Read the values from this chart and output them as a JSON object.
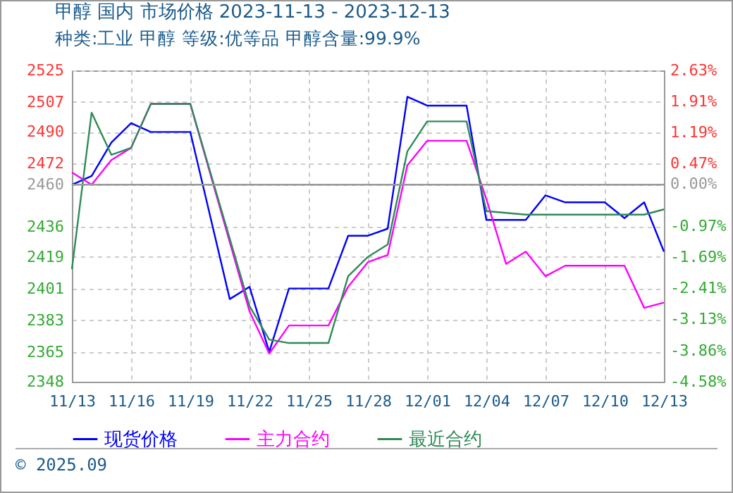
{
  "chart_data": {
    "type": "line",
    "title": "甲醇 国内 市场价格 2023-11-13 - 2023-12-13",
    "subtitle": "种类:工业 甲醇 等级:优等品 甲醇含量:99.9%",
    "annotations": [
      "© 2025.09"
    ],
    "xlim": [
      "2023-11-13",
      "2023-12-13"
    ],
    "xticks": [
      {
        "value": "2023-11-13",
        "label": "11/13"
      },
      {
        "value": "2023-11-16",
        "label": "11/16"
      },
      {
        "value": "2023-11-19",
        "label": "11/19"
      },
      {
        "value": "2023-11-22",
        "label": "11/22"
      },
      {
        "value": "2023-11-25",
        "label": "11/25"
      },
      {
        "value": "2023-11-28",
        "label": "11/28"
      },
      {
        "value": "2023-12-01",
        "label": "12/01"
      },
      {
        "value": "2023-12-04",
        "label": "12/04"
      },
      {
        "value": "2023-12-07",
        "label": "12/07"
      },
      {
        "value": "2023-12-10",
        "label": "12/10"
      },
      {
        "value": "2023-12-13",
        "label": "12/13"
      }
    ],
    "ylim": [
      2348,
      2525
    ],
    "yticks": [
      2348,
      2365,
      2383,
      2401,
      2419,
      2436,
      2460,
      2472,
      2490,
      2507,
      2525
    ],
    "y2lim": [
      -4.58,
      2.63
    ],
    "y2ticks": [
      {
        "value": -4.58,
        "label": "-4.58%"
      },
      {
        "value": -3.86,
        "label": "-3.86%"
      },
      {
        "value": -3.13,
        "label": "-3.13%"
      },
      {
        "value": -2.41,
        "label": "-2.41%"
      },
      {
        "value": -1.69,
        "label": "-1.69%"
      },
      {
        "value": -0.97,
        "label": "-0.97%"
      },
      {
        "value": 0,
        "label": "0.00%"
      },
      {
        "value": 0.47,
        "label": "0.47%"
      },
      {
        "value": 1.19,
        "label": "1.19%"
      },
      {
        "value": 1.91,
        "label": "1.91%"
      },
      {
        "value": 2.63,
        "label": "2.63%"
      }
    ],
    "ref_lines": [
      {
        "axis": "y",
        "value": 2460,
        "color": "#999999"
      }
    ],
    "grid": true,
    "legend": "bottom",
    "line_style": "solid",
    "series": [
      {
        "name": "现货价格",
        "color": "#0000ff",
        "x": [
          "2023-11-13",
          "2023-11-14",
          "2023-11-15",
          "2023-11-16",
          "2023-11-17",
          "2023-11-19",
          "2023-11-21",
          "2023-11-22",
          "2023-11-23",
          "2023-11-24",
          "2023-11-26",
          "2023-11-27",
          "2023-11-28",
          "2023-11-29",
          "2023-11-30",
          "2023-12-01",
          "2023-12-03",
          "2023-12-04",
          "2023-12-06",
          "2023-12-07",
          "2023-12-08",
          "2023-12-10",
          "2023-12-11",
          "2023-12-12",
          "2023-12-13"
        ],
        "values": [
          2460,
          2465,
          2484,
          2495,
          2490,
          2490,
          2395,
          2402,
          2365,
          2401,
          2401,
          2431,
          2431,
          2435,
          2510,
          2505,
          2505,
          2440,
          2440,
          2454,
          2450,
          2450,
          2441,
          2450,
          2422
        ]
      },
      {
        "name": "主力合约",
        "color": "#ff00ff",
        "x": [
          "2023-11-13",
          "2023-11-14",
          "2023-11-15",
          "2023-11-16",
          "2023-11-17",
          "2023-11-19",
          "2023-11-22",
          "2023-11-23",
          "2023-11-24",
          "2023-11-26",
          "2023-11-27",
          "2023-11-28",
          "2023-11-29",
          "2023-11-30",
          "2023-12-01",
          "2023-12-03",
          "2023-12-04",
          "2023-12-05",
          "2023-12-06",
          "2023-12-07",
          "2023-12-08",
          "2023-12-11",
          "2023-12-12",
          "2023-12-13"
        ],
        "values": [
          2467,
          2460,
          2474,
          2481,
          2506,
          2506,
          2388,
          2364,
          2380,
          2380,
          2402,
          2416,
          2420,
          2471,
          2485,
          2485,
          2452,
          2415,
          2422,
          2408,
          2414,
          2414,
          2390,
          2393
        ]
      },
      {
        "name": "最近合约",
        "color": "#2e8b57",
        "x": [
          "2023-11-13",
          "2023-11-14",
          "2023-11-15",
          "2023-11-16",
          "2023-11-17",
          "2023-11-19",
          "2023-11-22",
          "2023-11-23",
          "2023-11-24",
          "2023-11-26",
          "2023-11-27",
          "2023-11-28",
          "2023-11-29",
          "2023-11-30",
          "2023-12-01",
          "2023-12-03",
          "2023-12-04",
          "2023-12-05",
          "2023-12-06",
          "2023-12-12",
          "2023-12-13"
        ],
        "values": [
          2412,
          2501,
          2477,
          2481,
          2506,
          2506,
          2391,
          2372,
          2370,
          2370,
          2408,
          2419,
          2426,
          2479,
          2496,
          2496,
          2445,
          2444,
          2443,
          2443,
          2446
        ]
      }
    ]
  }
}
